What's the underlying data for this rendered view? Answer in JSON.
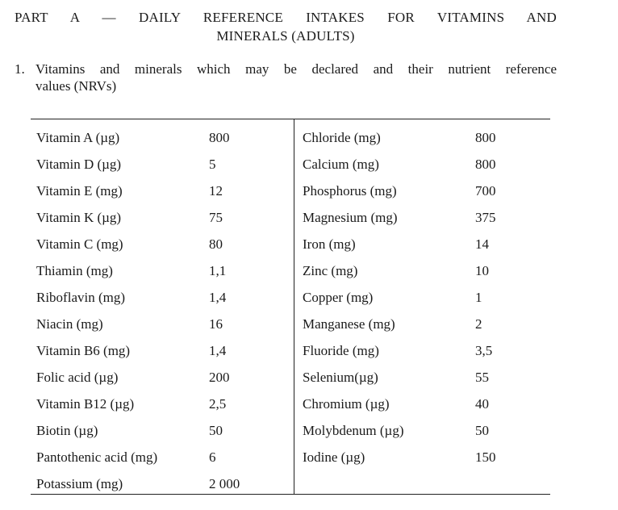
{
  "heading": {
    "line1": "PART A — DAILY REFERENCE INTAKES FOR VITAMINS AND",
    "line2": "MINERALS (ADULTS)"
  },
  "intro": {
    "number": "1.",
    "line1": "Vitamins and minerals which may be declared and their nutrient reference",
    "line2": "values (NRVs)"
  },
  "table": {
    "left": [
      {
        "name": "Vitamin A (µg)",
        "value": "800"
      },
      {
        "name": "Vitamin D (µg)",
        "value": "5"
      },
      {
        "name": "Vitamin E (mg)",
        "value": "12"
      },
      {
        "name": "Vitamin K (µg)",
        "value": "75"
      },
      {
        "name": "Vitamin C (mg)",
        "value": "80"
      },
      {
        "name": "Thiamin (mg)",
        "value": "1,1"
      },
      {
        "name": "Riboflavin (mg)",
        "value": "1,4"
      },
      {
        "name": "Niacin (mg)",
        "value": "16"
      },
      {
        "name": "Vitamin B6 (mg)",
        "value": "1,4"
      },
      {
        "name": "Folic acid (µg)",
        "value": "200"
      },
      {
        "name": "Vitamin B12 (µg)",
        "value": "2,5"
      },
      {
        "name": "Biotin (µg)",
        "value": "50"
      },
      {
        "name": "Pantothenic acid (mg)",
        "value": "6"
      },
      {
        "name": "Potassium (mg)",
        "value": "2 000"
      }
    ],
    "right": [
      {
        "name": "Chloride (mg)",
        "value": "800"
      },
      {
        "name": "Calcium (mg)",
        "value": "800"
      },
      {
        "name": "Phosphorus (mg)",
        "value": "700"
      },
      {
        "name": "Magnesium (mg)",
        "value": "375"
      },
      {
        "name": "Iron (mg)",
        "value": "14"
      },
      {
        "name": "Zinc (mg)",
        "value": "10"
      },
      {
        "name": "Copper (mg)",
        "value": "1"
      },
      {
        "name": "Manganese (mg)",
        "value": "2"
      },
      {
        "name": "Fluoride (mg)",
        "value": "3,5"
      },
      {
        "name": "Selenium(µg)",
        "value": "55"
      },
      {
        "name": "Chromium (µg)",
        "value": "40"
      },
      {
        "name": "Molybdenum (µg)",
        "value": "50"
      },
      {
        "name": "Iodine (µg)",
        "value": "150"
      }
    ]
  }
}
